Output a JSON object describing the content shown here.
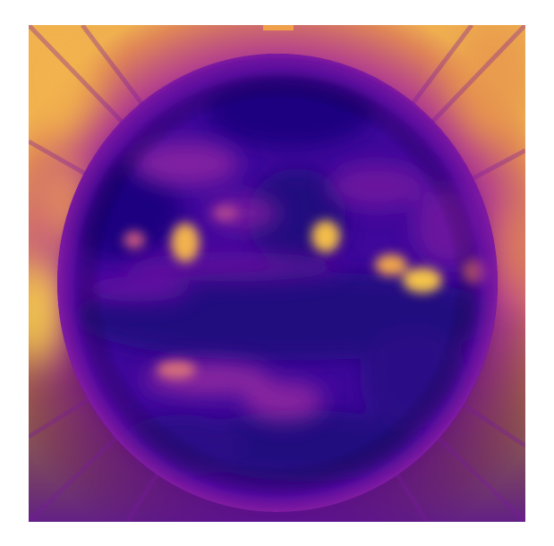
{
  "image": {
    "kind": "solar-disk-false-color",
    "colormap": "plasma",
    "colors": {
      "background": "#ffffff",
      "deep": "#1f0680",
      "dark": "#3a069a",
      "mid": "#6c0aa6",
      "magenta": "#a2349a",
      "orange": "#e07a4a",
      "bright": "#f7c146"
    }
  }
}
